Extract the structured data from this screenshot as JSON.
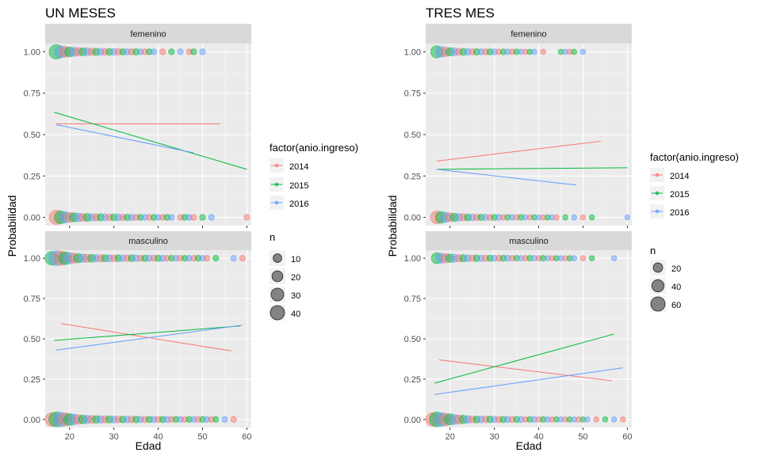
{
  "chart_data": [
    {
      "type": "scatter",
      "title": "UN MESES",
      "xlabel": "Edad",
      "ylabel": "Probabilidad",
      "xlim": [
        14.5,
        61
      ],
      "ylim": [
        -0.05,
        1.05
      ],
      "x_ticks": [
        20,
        30,
        40,
        50,
        60
      ],
      "y_ticks": [
        "0.00",
        "0.25",
        "0.50",
        "0.75",
        "1.00"
      ],
      "grid": true,
      "colour_legend": {
        "title": "factor(anio.ingreso)",
        "entries": [
          "2014",
          "2015",
          "2016"
        ],
        "colors": [
          "#F8766D",
          "#00BA38",
          "#619CFF"
        ]
      },
      "size_legend": {
        "title": "n",
        "entries": [
          "10",
          "20",
          "30",
          "40"
        ],
        "sizes": [
          10,
          20,
          30,
          40
        ]
      },
      "facets": [
        {
          "label": "femenino",
          "lines": [
            {
              "series": "2014",
              "x": [
                17,
                54
              ],
              "y": [
                0.565,
                0.565
              ]
            },
            {
              "series": "2015",
              "x": [
                16.5,
                60
              ],
              "y": [
                0.635,
                0.29
              ]
            },
            {
              "series": "2016",
              "x": [
                17,
                48
              ],
              "y": [
                0.56,
                0.39
              ]
            }
          ],
          "points_y1": {
            "x": [
              17,
              18,
              19,
              20,
              21,
              22,
              23,
              24,
              25,
              26,
              27,
              28,
              29,
              30,
              31,
              32,
              33,
              34,
              35,
              36,
              37,
              38,
              39,
              41,
              43,
              45,
              47,
              48,
              50
            ],
            "n": [
              40,
              28,
              20,
              15,
              12,
              10,
              8,
              8,
              7,
              6,
              6,
              5,
              5,
              5,
              5,
              4,
              4,
              4,
              4,
              3,
              3,
              3,
              3,
              3,
              3,
              3,
              3,
              3,
              3
            ]
          },
          "points_y0": {
            "x": [
              17,
              18,
              19,
              20,
              21,
              22,
              23,
              24,
              25,
              26,
              27,
              28,
              29,
              30,
              31,
              32,
              33,
              34,
              35,
              36,
              37,
              38,
              39,
              40,
              41,
              42,
              43,
              45,
              46,
              47,
              48,
              50,
              52,
              60
            ],
            "n": [
              40,
              30,
              22,
              16,
              12,
              10,
              8,
              8,
              7,
              6,
              6,
              5,
              5,
              5,
              5,
              4,
              4,
              4,
              4,
              3,
              3,
              3,
              3,
              3,
              3,
              3,
              3,
              3,
              3,
              3,
              3,
              3,
              3,
              3
            ]
          }
        },
        {
          "label": "masculino",
          "lines": [
            {
              "series": "2014",
              "x": [
                18,
                56.5
              ],
              "y": [
                0.595,
                0.425
              ]
            },
            {
              "series": "2015",
              "x": [
                16.5,
                58.5
              ],
              "y": [
                0.49,
                0.58
              ]
            },
            {
              "series": "2016",
              "x": [
                17,
                59
              ],
              "y": [
                0.43,
                0.585
              ]
            }
          ],
          "points_y1": {
            "x": [
              16,
              17,
              18,
              19,
              20,
              21,
              22,
              23,
              24,
              25,
              26,
              27,
              28,
              29,
              30,
              31,
              32,
              33,
              34,
              35,
              36,
              37,
              38,
              39,
              40,
              41,
              42,
              43,
              44,
              45,
              46,
              47,
              48,
              49,
              50,
              51,
              53,
              57,
              59
            ],
            "n": [
              35,
              45,
              40,
              30,
              22,
              16,
              12,
              10,
              9,
              8,
              7,
              7,
              6,
              6,
              6,
              5,
              5,
              5,
              5,
              5,
              4,
              4,
              4,
              4,
              4,
              4,
              3,
              3,
              3,
              3,
              3,
              3,
              3,
              3,
              3,
              3,
              3,
              3,
              3
            ]
          },
          "points_y0": {
            "x": [
              16,
              17,
              18,
              19,
              20,
              21,
              22,
              23,
              24,
              25,
              26,
              27,
              28,
              29,
              30,
              31,
              32,
              33,
              34,
              35,
              36,
              37,
              38,
              39,
              40,
              41,
              42,
              43,
              44,
              45,
              46,
              47,
              48,
              49,
              50,
              51,
              52,
              53,
              55,
              57
            ],
            "n": [
              35,
              45,
              42,
              32,
              24,
              18,
              14,
              11,
              9,
              8,
              7,
              7,
              6,
              6,
              6,
              5,
              5,
              5,
              5,
              5,
              4,
              4,
              4,
              4,
              4,
              4,
              4,
              3,
              3,
              3,
              3,
              3,
              3,
              3,
              3,
              3,
              3,
              3,
              3,
              3
            ]
          }
        }
      ]
    },
    {
      "type": "scatter",
      "title": "TRES MES",
      "xlabel": "Edad",
      "ylabel": "Probabilidad",
      "xlim": [
        14.5,
        61
      ],
      "ylim": [
        -0.05,
        1.05
      ],
      "x_ticks": [
        20,
        30,
        40,
        50,
        60
      ],
      "y_ticks": [
        "0.00",
        "0.25",
        "0.50",
        "0.75",
        "1.00"
      ],
      "grid": true,
      "colour_legend": {
        "title": "factor(anio.ingreso)",
        "entries": [
          "2014",
          "2015",
          "2016"
        ],
        "colors": [
          "#F8766D",
          "#00BA38",
          "#619CFF"
        ]
      },
      "size_legend": {
        "title": "n",
        "entries": [
          "20",
          "40",
          "60"
        ],
        "sizes": [
          20,
          40,
          60
        ]
      },
      "facets": [
        {
          "label": "femenino",
          "lines": [
            {
              "series": "2014",
              "x": [
                17,
                54
              ],
              "y": [
                0.34,
                0.46
              ]
            },
            {
              "series": "2015",
              "x": [
                17,
                60
              ],
              "y": [
                0.29,
                0.3
              ]
            },
            {
              "series": "2016",
              "x": [
                17,
                48.5
              ],
              "y": [
                0.29,
                0.195
              ]
            }
          ],
          "points_y1": {
            "x": [
              17,
              18,
              19,
              20,
              21,
              22,
              23,
              24,
              25,
              26,
              27,
              28,
              29,
              30,
              31,
              32,
              33,
              34,
              35,
              36,
              37,
              38,
              39,
              41,
              45,
              46,
              47,
              48,
              50
            ],
            "n": [
              40,
              28,
              20,
              14,
              11,
              9,
              8,
              7,
              6,
              6,
              5,
              5,
              5,
              5,
              4,
              4,
              4,
              4,
              4,
              3,
              3,
              3,
              3,
              3,
              3,
              3,
              3,
              3,
              3
            ]
          },
          "points_y0": {
            "x": [
              17,
              18,
              19,
              20,
              21,
              22,
              23,
              24,
              25,
              26,
              27,
              28,
              29,
              30,
              31,
              32,
              33,
              34,
              35,
              36,
              37,
              38,
              39,
              40,
              41,
              42,
              43,
              44,
              46,
              48,
              50,
              52,
              60
            ],
            "n": [
              45,
              35,
              25,
              18,
              14,
              11,
              9,
              8,
              7,
              6,
              6,
              5,
              5,
              5,
              5,
              4,
              4,
              4,
              4,
              4,
              3,
              3,
              3,
              3,
              3,
              3,
              3,
              3,
              3,
              3,
              3,
              3,
              3
            ]
          }
        },
        {
          "label": "masculino",
          "lines": [
            {
              "series": "2014",
              "x": [
                17.5,
                56.5
              ],
              "y": [
                0.37,
                0.24
              ]
            },
            {
              "series": "2015",
              "x": [
                16.5,
                57
              ],
              "y": [
                0.225,
                0.53
              ]
            },
            {
              "series": "2016",
              "x": [
                16.5,
                59
              ],
              "y": [
                0.155,
                0.32
              ]
            }
          ],
          "points_y1": {
            "x": [
              17,
              18,
              19,
              20,
              21,
              22,
              23,
              24,
              25,
              26,
              27,
              28,
              29,
              30,
              31,
              32,
              33,
              34,
              35,
              36,
              37,
              38,
              39,
              40,
              41,
              42,
              43,
              44,
              45,
              46,
              47,
              48,
              50,
              52,
              57
            ],
            "n": [
              30,
              25,
              20,
              15,
              12,
              10,
              9,
              8,
              7,
              7,
              6,
              6,
              5,
              5,
              5,
              5,
              5,
              4,
              4,
              4,
              4,
              4,
              4,
              4,
              4,
              3,
              3,
              3,
              3,
              3,
              3,
              3,
              3,
              3,
              3
            ]
          },
          "points_y0": {
            "x": [
              16,
              17,
              18,
              19,
              20,
              21,
              22,
              23,
              24,
              25,
              26,
              27,
              28,
              29,
              30,
              31,
              32,
              33,
              34,
              35,
              36,
              37,
              38,
              39,
              40,
              41,
              42,
              43,
              44,
              45,
              46,
              47,
              48,
              49,
              50,
              51,
              53,
              55,
              57,
              59
            ],
            "n": [
              50,
              65,
              55,
              42,
              32,
              24,
              18,
              14,
              11,
              9,
              8,
              8,
              7,
              7,
              6,
              6,
              6,
              5,
              5,
              5,
              5,
              4,
              4,
              4,
              4,
              4,
              4,
              3,
              3,
              3,
              3,
              3,
              3,
              3,
              3,
              3,
              3,
              3,
              3,
              3
            ]
          }
        }
      ]
    }
  ]
}
